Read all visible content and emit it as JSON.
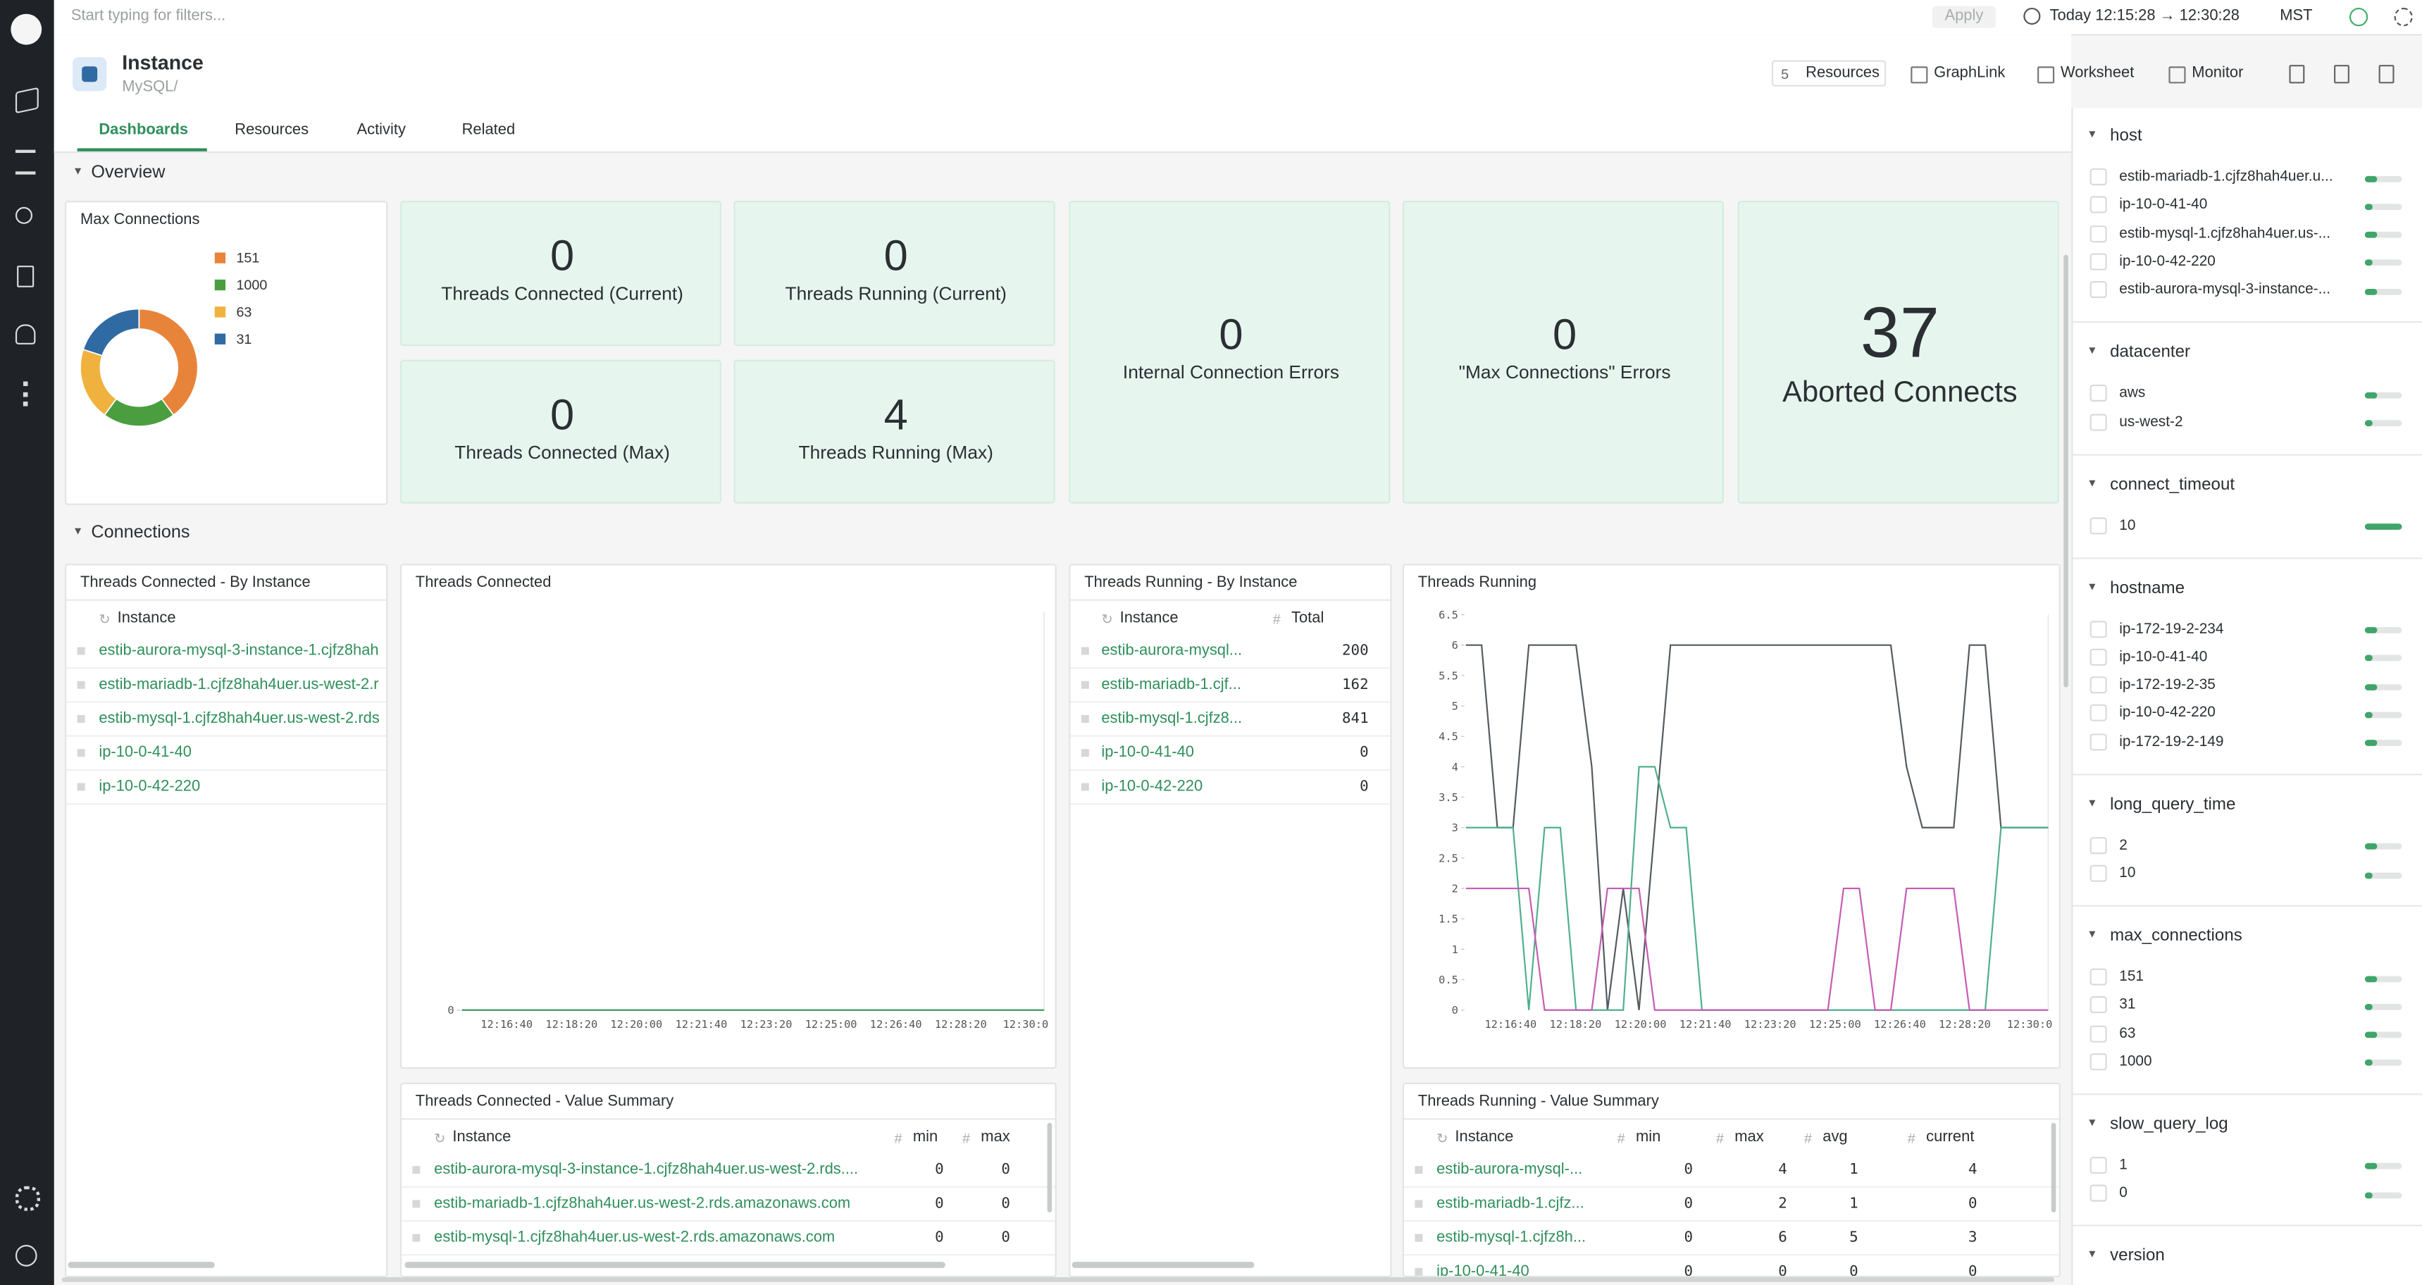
{
  "topbar": {
    "filter_placeholder": "Start typing for filters...",
    "apply": "Apply",
    "time_range": "Today 12:15:28 → 12:30:28",
    "timezone": "MST"
  },
  "header": {
    "title": "Instance",
    "subtitle": "MySQL/",
    "resources_count": "5",
    "actions": [
      "Resources",
      "GraphLink",
      "Worksheet",
      "Monitor"
    ]
  },
  "tabs": [
    "Dashboards",
    "Resources",
    "Activity",
    "Related"
  ],
  "sections": [
    "Overview",
    "Connections"
  ],
  "tiles": [
    {
      "label": "Threads Connected (Current)",
      "value": "0"
    },
    {
      "label": "Threads Running (Current)",
      "value": "0"
    },
    {
      "label": "Threads Connected (Max)",
      "value": "0"
    },
    {
      "label": "Threads Running (Max)",
      "value": "4"
    },
    {
      "label": "Internal Connection Errors",
      "value": "0"
    },
    {
      "label": "\"Max Connections\" Errors",
      "value": "0"
    },
    {
      "label": "Aborted Connects",
      "value": "37"
    }
  ],
  "tables": {
    "tc_by_instance": {
      "title": "Threads Connected - By Instance",
      "columns": [
        "Instance"
      ],
      "rows": [
        [
          "estib-aurora-mysql-3-instance-1.cjfz8hah"
        ],
        [
          "estib-mariadb-1.cjfz8hah4uer.us-west-2.r"
        ],
        [
          "estib-mysql-1.cjfz8hah4uer.us-west-2.rds"
        ],
        [
          "ip-10-0-41-40"
        ],
        [
          "ip-10-0-42-220"
        ]
      ]
    },
    "tr_by_instance": {
      "title": "Threads Running - By Instance",
      "columns": [
        "Instance",
        "Total"
      ],
      "rows": [
        [
          "estib-aurora-mysql...",
          "200"
        ],
        [
          "estib-mariadb-1.cjf...",
          "162"
        ],
        [
          "estib-mysql-1.cjfz8...",
          "841"
        ],
        [
          "ip-10-0-41-40",
          "0"
        ],
        [
          "ip-10-0-42-220",
          "0"
        ]
      ]
    },
    "tc_summary": {
      "title": "Threads Connected - Value Summary",
      "columns": [
        "Instance",
        "min",
        "max"
      ],
      "rows": [
        [
          "estib-aurora-mysql-3-instance-1.cjfz8hah4uer.us-west-2.rds....",
          "0",
          "0"
        ],
        [
          "estib-mariadb-1.cjfz8hah4uer.us-west-2.rds.amazonaws.com",
          "0",
          "0"
        ],
        [
          "estib-mysql-1.cjfz8hah4uer.us-west-2.rds.amazonaws.com",
          "0",
          "0"
        ]
      ]
    },
    "tr_summary": {
      "title": "Threads Running - Value Summary",
      "columns": [
        "Instance",
        "min",
        "max",
        "avg",
        "current"
      ],
      "rows": [
        [
          "estib-aurora-mysql-...",
          "0",
          "4",
          "1",
          "4"
        ],
        [
          "estib-mariadb-1.cjfz...",
          "0",
          "2",
          "1",
          "0"
        ],
        [
          "estib-mysql-1.cjfz8h...",
          "0",
          "6",
          "5",
          "3"
        ],
        [
          "ip-10-0-41-40",
          "0",
          "0",
          "0",
          "0"
        ]
      ]
    }
  },
  "facets": [
    {
      "name": "host",
      "items": [
        "estib-mariadb-1.cjfz8hah4uer.u...",
        "ip-10-0-41-40",
        "estib-mysql-1.cjfz8hah4uer.us-...",
        "ip-10-0-42-220",
        "estib-aurora-mysql-3-instance-..."
      ]
    },
    {
      "name": "datacenter",
      "items": [
        "aws",
        "us-west-2"
      ]
    },
    {
      "name": "connect_timeout",
      "items": [
        "10"
      ]
    },
    {
      "name": "hostname",
      "items": [
        "ip-172-19-2-234",
        "ip-10-0-41-40",
        "ip-172-19-2-35",
        "ip-10-0-42-220",
        "ip-172-19-2-149"
      ]
    },
    {
      "name": "long_query_time",
      "items": [
        "2",
        "10"
      ]
    },
    {
      "name": "max_connections",
      "items": [
        "151",
        "31",
        "63",
        "1000"
      ]
    },
    {
      "name": "slow_query_log",
      "items": [
        "1",
        "0"
      ]
    },
    {
      "name": "version",
      "items": []
    }
  ],
  "chart_data": [
    {
      "type": "pie",
      "title": "Max Connections",
      "categories": [
        "151",
        "1000",
        "63",
        "31"
      ],
      "values": [
        2,
        1,
        1,
        1
      ],
      "colors": [
        "#e8843a",
        "#4a9e3f",
        "#f0b23f",
        "#2f6aa3"
      ]
    },
    {
      "type": "line",
      "title": "Threads Connected",
      "xticks": [
        "12:16:40",
        "12:18:20",
        "12:20:00",
        "12:21:40",
        "12:23:20",
        "12:25:00",
        "12:26:40",
        "12:28:20",
        "12:30:0"
      ],
      "ylim": [
        0,
        6.5
      ],
      "yticks": [
        0
      ],
      "series": [
        {
          "color": "#3d9a5c",
          "values": [
            0,
            0,
            0,
            0,
            0,
            0,
            0,
            0,
            0,
            0
          ]
        }
      ]
    },
    {
      "type": "line",
      "title": "Threads Running",
      "xticks": [
        "12:16:40",
        "12:18:20",
        "12:20:00",
        "12:21:40",
        "12:23:20",
        "12:25:00",
        "12:26:40",
        "12:28:20",
        "12:30:0"
      ],
      "ylim": [
        0,
        6.5
      ],
      "yticks": [
        0,
        0.5,
        1,
        1.5,
        2,
        2.5,
        3,
        3.5,
        4,
        4.5,
        5,
        5.5,
        6,
        6.5
      ],
      "series": [
        {
          "color": "#555a5f",
          "values": [
            6,
            6,
            3,
            3,
            6,
            6,
            6,
            6,
            4,
            0,
            2,
            0,
            3,
            6,
            6,
            6,
            6,
            6,
            6,
            6,
            6,
            6,
            6,
            6,
            6,
            6,
            6,
            6,
            4,
            3,
            3,
            3,
            6,
            6,
            3,
            3,
            3,
            3
          ]
        },
        {
          "color": "#4fb08a",
          "values": [
            3,
            3,
            3,
            3,
            0,
            3,
            3,
            0,
            0,
            0,
            0,
            4,
            4,
            3,
            3,
            0,
            0,
            0,
            0,
            0,
            0,
            0,
            0,
            0,
            0,
            0,
            0,
            0,
            0,
            0,
            0,
            0,
            0,
            0,
            3,
            3,
            3,
            3
          ]
        },
        {
          "color": "#c65bb4",
          "values": [
            2,
            2,
            2,
            2,
            2,
            0,
            0,
            0,
            0,
            2,
            2,
            2,
            0,
            0,
            0,
            0,
            0,
            0,
            0,
            0,
            0,
            0,
            0,
            0,
            2,
            2,
            0,
            0,
            2,
            2,
            2,
            2,
            0,
            0,
            0,
            0,
            0,
            0
          ]
        }
      ]
    }
  ]
}
